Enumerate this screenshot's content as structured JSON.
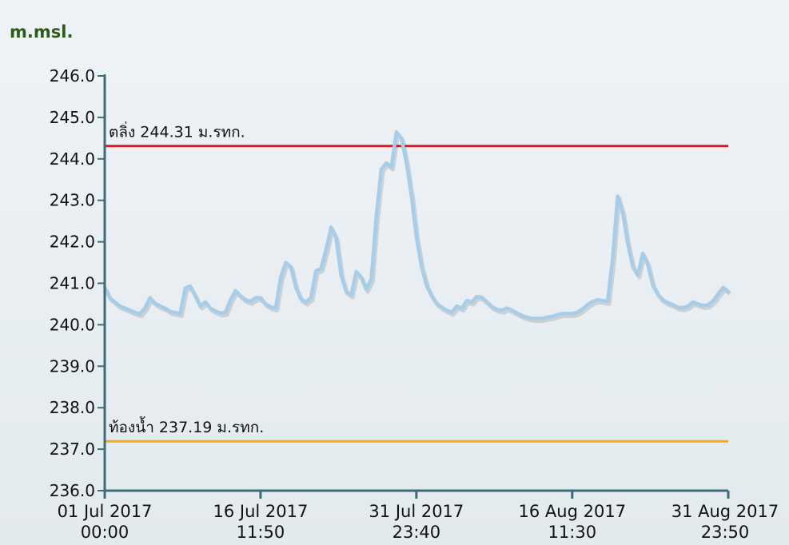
{
  "chart_data": {
    "type": "line",
    "ylabel": "m.msl.",
    "ylim": [
      236,
      246
    ],
    "yticks": [
      {
        "value": 236,
        "label": "236.0"
      },
      {
        "value": 237,
        "label": "237.0"
      },
      {
        "value": 238,
        "label": "238.0"
      },
      {
        "value": 239,
        "label": "239.0"
      },
      {
        "value": 240,
        "label": "240.0"
      },
      {
        "value": 241,
        "label": "241.0"
      },
      {
        "value": 242,
        "label": "242.0"
      },
      {
        "value": 243,
        "label": "243.0"
      },
      {
        "value": 244,
        "label": "244.0"
      },
      {
        "value": 245,
        "label": "245.0"
      },
      {
        "value": 246,
        "label": "246.0"
      }
    ],
    "xlim": [
      "2017-07-01T00:00",
      "2017-08-31T23:50"
    ],
    "xticks": [
      {
        "value": "2017-07-01T00:00",
        "label": "01 Jul 2017\n00:00"
      },
      {
        "value": "2017-07-16T11:50",
        "label": "16 Jul 2017\n11:50"
      },
      {
        "value": "2017-07-31T23:40",
        "label": "31 Jul 2017\n23:40"
      },
      {
        "value": "2017-08-16T11:30",
        "label": "16 Aug 2017\n11:30"
      },
      {
        "value": "2017-08-31T23:50",
        "label": "31 Aug 2017\n23:50"
      }
    ],
    "reference_lines": [
      {
        "label": "ตลิ่ง 244.31 ม.รทก.",
        "value": 244.31,
        "color": "#e8141c"
      },
      {
        "label": "ท้องน้ำ 237.19 ม.รทก.",
        "value": 237.19,
        "color": "#f5a623"
      }
    ],
    "x": [
      "2017-07-01T00:00",
      "2017-07-01T12:00",
      "2017-07-02T00:00",
      "2017-07-02T12:00",
      "2017-07-03T00:00",
      "2017-07-03T12:00",
      "2017-07-04T00:00",
      "2017-07-04T12:00",
      "2017-07-05T00:00",
      "2017-07-05T12:00",
      "2017-07-06T00:00",
      "2017-07-06T12:00",
      "2017-07-07T00:00",
      "2017-07-07T12:00",
      "2017-07-08T00:00",
      "2017-07-08T12:00",
      "2017-07-09T00:00",
      "2017-07-09T12:00",
      "2017-07-10T00:00",
      "2017-07-10T12:00",
      "2017-07-11T00:00",
      "2017-07-11T12:00",
      "2017-07-12T00:00",
      "2017-07-12T12:00",
      "2017-07-13T00:00",
      "2017-07-13T12:00",
      "2017-07-14T00:00",
      "2017-07-14T12:00",
      "2017-07-15T00:00",
      "2017-07-15T12:00",
      "2017-07-16T00:00",
      "2017-07-16T12:00",
      "2017-07-17T00:00",
      "2017-07-17T12:00",
      "2017-07-18T00:00",
      "2017-07-18T12:00",
      "2017-07-19T00:00",
      "2017-07-19T12:00",
      "2017-07-20T00:00",
      "2017-07-20T12:00",
      "2017-07-21T00:00",
      "2017-07-21T12:00",
      "2017-07-22T00:00",
      "2017-07-22T12:00",
      "2017-07-23T00:00",
      "2017-07-23T12:00",
      "2017-07-24T00:00",
      "2017-07-24T12:00",
      "2017-07-25T00:00",
      "2017-07-25T12:00",
      "2017-07-26T00:00",
      "2017-07-26T12:00",
      "2017-07-27T00:00",
      "2017-07-27T12:00",
      "2017-07-28T00:00",
      "2017-07-28T12:00",
      "2017-07-29T00:00",
      "2017-07-29T12:00",
      "2017-07-30T00:00",
      "2017-07-30T12:00",
      "2017-07-31T00:00",
      "2017-07-31T12:00",
      "2017-08-01T00:00",
      "2017-08-01T12:00",
      "2017-08-02T00:00",
      "2017-08-02T12:00",
      "2017-08-03T00:00",
      "2017-08-03T12:00",
      "2017-08-04T00:00",
      "2017-08-04T12:00",
      "2017-08-05T00:00",
      "2017-08-05T12:00",
      "2017-08-06T00:00",
      "2017-08-06T12:00",
      "2017-08-07T00:00",
      "2017-08-07T12:00",
      "2017-08-08T00:00",
      "2017-08-08T12:00",
      "2017-08-09T00:00",
      "2017-08-09T12:00",
      "2017-08-10T00:00",
      "2017-08-10T12:00",
      "2017-08-11T00:00",
      "2017-08-11T12:00",
      "2017-08-12T00:00",
      "2017-08-12T12:00",
      "2017-08-13T00:00",
      "2017-08-13T12:00",
      "2017-08-14T00:00",
      "2017-08-14T12:00",
      "2017-08-15T00:00",
      "2017-08-15T12:00",
      "2017-08-16T00:00",
      "2017-08-16T12:00",
      "2017-08-17T00:00",
      "2017-08-17T12:00",
      "2017-08-18T00:00",
      "2017-08-18T12:00",
      "2017-08-19T00:00",
      "2017-08-19T12:00",
      "2017-08-20T00:00",
      "2017-08-20T12:00",
      "2017-08-21T00:00",
      "2017-08-21T12:00",
      "2017-08-22T00:00",
      "2017-08-22T12:00",
      "2017-08-23T00:00",
      "2017-08-23T12:00",
      "2017-08-24T00:00",
      "2017-08-24T12:00",
      "2017-08-25T00:00",
      "2017-08-25T12:00",
      "2017-08-26T00:00",
      "2017-08-26T12:00",
      "2017-08-27T00:00",
      "2017-08-27T12:00",
      "2017-08-28T00:00",
      "2017-08-28T12:00",
      "2017-08-29T00:00",
      "2017-08-29T12:00",
      "2017-08-30T00:00",
      "2017-08-30T12:00",
      "2017-08-31T00:00",
      "2017-08-31T12:00",
      "2017-08-31T23:50"
    ],
    "series": [
      {
        "color": "#a8cde8",
        "values": [
          240.9,
          240.65,
          240.55,
          240.45,
          240.4,
          240.35,
          240.3,
          240.26,
          240.4,
          240.65,
          240.52,
          240.45,
          240.4,
          240.32,
          240.29,
          240.27,
          240.88,
          240.93,
          240.7,
          240.45,
          240.55,
          240.4,
          240.33,
          240.28,
          240.3,
          240.6,
          240.82,
          240.7,
          240.6,
          240.56,
          240.65,
          240.65,
          240.5,
          240.43,
          240.4,
          241.15,
          241.5,
          241.4,
          240.9,
          240.62,
          240.55,
          240.65,
          241.3,
          241.35,
          241.8,
          242.35,
          242.1,
          241.2,
          240.8,
          240.72,
          241.28,
          241.15,
          240.85,
          241.1,
          242.6,
          243.75,
          243.9,
          243.8,
          244.65,
          244.5,
          243.9,
          243.1,
          242.1,
          241.4,
          240.95,
          240.7,
          240.52,
          240.42,
          240.35,
          240.3,
          240.45,
          240.4,
          240.58,
          240.55,
          240.68,
          240.66,
          240.55,
          240.44,
          240.37,
          240.35,
          240.4,
          240.35,
          240.28,
          240.22,
          240.18,
          240.15,
          240.15,
          240.15,
          240.18,
          240.2,
          240.24,
          240.27,
          240.27,
          240.27,
          240.3,
          240.38,
          240.48,
          240.56,
          240.6,
          240.58,
          240.56,
          241.6,
          243.1,
          242.7,
          241.95,
          241.4,
          241.2,
          241.72,
          241.45,
          240.95,
          240.73,
          240.6,
          240.53,
          240.48,
          240.42,
          240.41,
          240.45,
          240.55,
          240.5,
          240.46,
          240.48,
          240.58,
          240.75,
          240.9,
          240.8
        ]
      }
    ]
  }
}
